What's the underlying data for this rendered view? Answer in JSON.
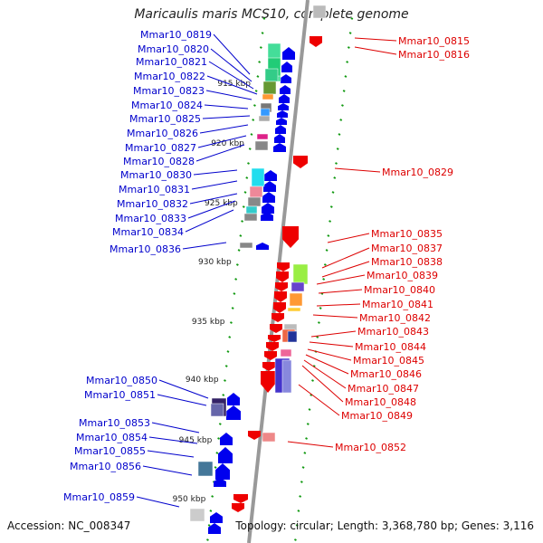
{
  "title": "Maricaulis maris MCS10, complete genome",
  "accession": "Accession: NC_008347",
  "topology": "Topology: circular; Length: 3,368,780 bp; Genes: 3,116",
  "colors": {
    "axis": "#999999",
    "tick": "#119911",
    "left_label": "#0000cc",
    "right_label": "#dd0000",
    "forward_arrow": "#0000ee",
    "reverse_arrow": "#ee0000"
  },
  "scale_labels": [
    "915 kbp",
    "920 kbp",
    "925 kbp",
    "930 kbp",
    "935 kbp",
    "940 kbp",
    "945 kbp",
    "950 kbp"
  ],
  "left_genes": [
    "Mmar10_0819",
    "Mmar10_0820",
    "Mmar10_0821",
    "Mmar10_0822",
    "Mmar10_0823",
    "Mmar10_0824",
    "Mmar10_0825",
    "Mmar10_0826",
    "Mmar10_0827",
    "Mmar10_0828",
    "Mmar10_0830",
    "Mmar10_0831",
    "Mmar10_0832",
    "Mmar10_0833",
    "Mmar10_0834",
    "Mmar10_0836",
    "Mmar10_0850",
    "Mmar10_0851",
    "Mmar10_0853",
    "Mmar10_0854",
    "Mmar10_0855",
    "Mmar10_0856",
    "Mmar10_0859"
  ],
  "right_genes": [
    "Mmar10_0815",
    "Mmar10_0816",
    "Mmar10_0829",
    "Mmar10_0835",
    "Mmar10_0837",
    "Mmar10_0838",
    "Mmar10_0839",
    "Mmar10_0840",
    "Mmar10_0841",
    "Mmar10_0842",
    "Mmar10_0843",
    "Mmar10_0844",
    "Mmar10_0845",
    "Mmar10_0846",
    "Mmar10_0847",
    "Mmar10_0848",
    "Mmar10_0849",
    "Mmar10_0852"
  ],
  "gene_boxes": [
    {
      "fill": "#44dd99"
    },
    {
      "fill": "#22cc77"
    },
    {
      "fill": "#33cc88"
    },
    {
      "fill": "#669933"
    },
    {
      "fill": "#ff9933"
    },
    {
      "fill": "#777777"
    },
    {
      "fill": "#3399ff"
    },
    {
      "fill": "#aaaaaa"
    },
    {
      "fill": "#dd2288"
    },
    {
      "fill": "#888888"
    },
    {
      "fill": "#22ddee"
    },
    {
      "fill": "#ee8899"
    },
    {
      "fill": "#888888"
    },
    {
      "fill": "#33cccc"
    },
    {
      "fill": "#888888"
    },
    {
      "fill": "#888888"
    },
    {
      "fill": "#332266"
    },
    {
      "fill": "#6666aa"
    },
    {
      "fill": "#447799"
    },
    {
      "fill": "#cccccc"
    },
    {
      "fill": "#99ee44"
    },
    {
      "fill": "#6644cc"
    },
    {
      "fill": "#ff9933"
    },
    {
      "fill": "#ffcc33"
    },
    {
      "fill": "#bbbbbb"
    },
    {
      "fill": "#ee6644"
    },
    {
      "fill": "#223399"
    },
    {
      "fill": "#ee6699"
    },
    {
      "fill": "#4433cc"
    },
    {
      "fill": "#8888dd"
    },
    {
      "fill": "#ee8888"
    },
    {
      "fill": "#bbbbbb"
    }
  ]
}
